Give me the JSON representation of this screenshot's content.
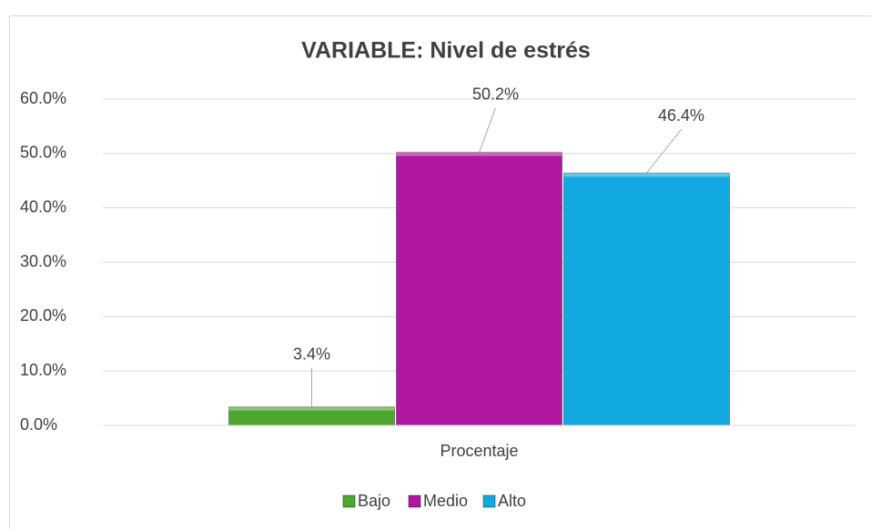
{
  "chart_data": {
    "type": "bar",
    "title": "VARIABLE: Nivel de estrés",
    "categories": [
      "Procentaje"
    ],
    "series": [
      {
        "name": "Bajo",
        "color": "#4ea72e",
        "values": [
          3.4
        ],
        "value_labels": [
          "3.4%"
        ]
      },
      {
        "name": "Medio",
        "color": "#b0169e",
        "values": [
          50.2
        ],
        "value_labels": [
          "50.2%"
        ]
      },
      {
        "name": "Alto",
        "color": "#12a9e0",
        "values": [
          46.4
        ],
        "value_labels": [
          "46.4%"
        ]
      }
    ],
    "ylim": [
      0,
      60
    ],
    "yticks": [
      {
        "value": 0,
        "label": "0.0%"
      },
      {
        "value": 10,
        "label": "10.0%"
      },
      {
        "value": 20,
        "label": "20.0%"
      },
      {
        "value": 30,
        "label": "30.0%"
      },
      {
        "value": 40,
        "label": "40.0%"
      },
      {
        "value": 50,
        "label": "50.0%"
      },
      {
        "value": 60,
        "label": "60.0%"
      }
    ],
    "grid": true,
    "legend": "bottom"
  }
}
